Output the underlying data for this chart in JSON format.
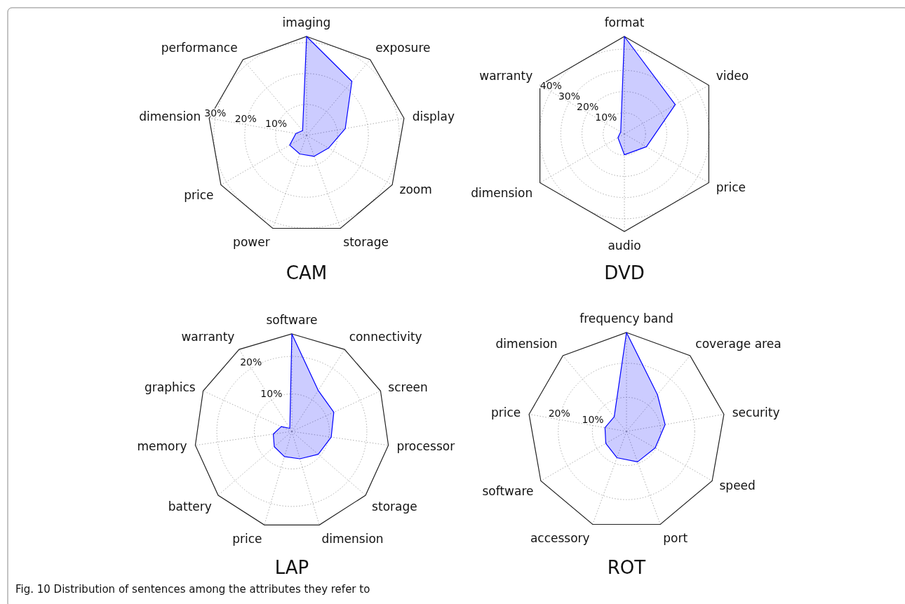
{
  "chart_data": [
    {
      "type": "radar",
      "title": "CAM",
      "categories": [
        "imaging",
        "exposure",
        "display",
        "zoom",
        "storage",
        "power",
        "price",
        "dimension",
        "performance"
      ],
      "series": [
        {
          "color": "#0000ff",
          "values": [
            32,
            22.8,
            12.7,
            8.2,
            7.2,
            6.4,
            6.3,
            3.5,
            2.0
          ]
        }
      ],
      "ylim": [
        0,
        32
      ],
      "yticks": [
        {
          "value": 10,
          "label": "10%"
        },
        {
          "value": 20,
          "label": "20%"
        },
        {
          "value": 30,
          "label": "30%"
        }
      ],
      "grid": true
    },
    {
      "type": "radar",
      "title": "DVD",
      "categories": [
        "format",
        "video",
        "price",
        "audio",
        "dimension",
        "warranty"
      ],
      "series": [
        {
          "color": "#0000ff",
          "values": [
            46,
            27.7,
            12,
            9.8,
            3.5,
            2
          ]
        }
      ],
      "ylim": [
        0,
        46
      ],
      "yticks": [
        {
          "value": 10,
          "label": "10%"
        },
        {
          "value": 20,
          "label": "20%"
        },
        {
          "value": 30,
          "label": "30%"
        },
        {
          "value": 40,
          "label": "40%"
        }
      ],
      "grid": true
    },
    {
      "type": "radar",
      "title": "LAP",
      "categories": [
        "software",
        "connectivity",
        "screen",
        "processor",
        "storage",
        "dimension",
        "price",
        "battery",
        "memory",
        "graphics",
        "warranty"
      ],
      "series": [
        {
          "color": "#0000ff",
          "values": [
            26,
            13,
            12.3,
            10.6,
            9.3,
            7.6,
            7.0,
            6.2,
            5.0,
            3.1,
            1.0
          ]
        }
      ],
      "ylim": [
        0,
        26
      ],
      "yticks": [
        {
          "value": 10,
          "label": "10%"
        },
        {
          "value": 20,
          "label": "20%"
        }
      ],
      "grid": true
    },
    {
      "type": "radar",
      "title": "ROT",
      "categories": [
        "frequency band",
        "coverage area",
        "security",
        "speed",
        "port",
        "accessory",
        "software",
        "price",
        "dimension"
      ],
      "series": [
        {
          "color": "#0000ff",
          "values": [
            29,
            14.1,
            11.5,
            9.7,
            9.5,
            8.2,
            7.0,
            6.4,
            5.6
          ]
        }
      ],
      "ylim": [
        0,
        29
      ],
      "yticks": [
        {
          "value": 10,
          "label": "10%"
        },
        {
          "value": 20,
          "label": "20%"
        }
      ],
      "grid": true,
      "annotations": [
        "Fig. 10 Distribution of sentences among the attributes they refer to"
      ]
    }
  ]
}
